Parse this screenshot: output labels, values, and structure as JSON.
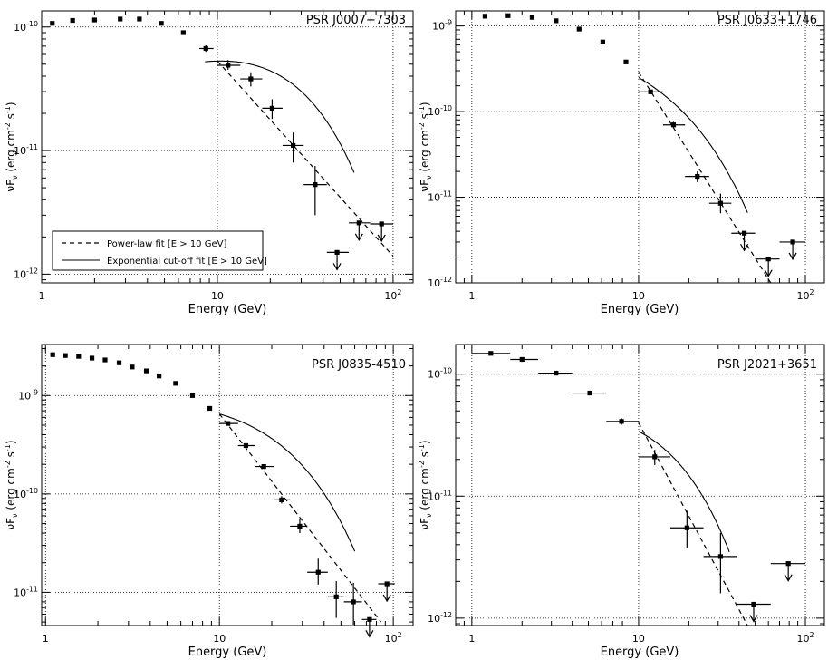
{
  "chart_data": [
    {
      "type": "scatter",
      "title": "PSR J0007+7303",
      "xlabel": "Energy (GeV)",
      "ylabel": "νF_ν (erg cm^-2 s^-1)",
      "x_scale": "log",
      "y_scale": "log",
      "xlim": [
        1,
        130
      ],
      "ylim": [
        8.5e-13,
        1.35e-10
      ],
      "x_tick_labels": [
        "1",
        "10",
        "10^2"
      ],
      "y_tick_labels": [
        "10^-12",
        "10^-11",
        "10^-10"
      ],
      "legend": {
        "placement": "lower-left",
        "entries": [
          {
            "label": "Power-law fit [E > 10 GeV]",
            "style": "dashed"
          },
          {
            "label": "Exponential cut-off fit [E > 10 GeV]",
            "style": "solid"
          }
        ]
      },
      "points": [
        {
          "x": 1.15,
          "y": 1.07e-10
        },
        {
          "x": 1.5,
          "y": 1.13e-10
        },
        {
          "x": 2.0,
          "y": 1.14e-10
        },
        {
          "x": 2.8,
          "y": 1.16e-10
        },
        {
          "x": 3.6,
          "y": 1.16e-10
        },
        {
          "x": 4.8,
          "y": 1.07e-10
        },
        {
          "x": 6.4,
          "y": 9e-11
        },
        {
          "x": 8.6,
          "y": 6.7e-11,
          "xerr": [
            7.9,
            9.5
          ],
          "yerr": [
            6.3e-11,
            7.1e-11
          ]
        },
        {
          "x": 11.5,
          "y": 4.9e-11,
          "xerr": [
            10.0,
            13.5
          ],
          "yerr": [
            4.5e-11,
            5.4e-11
          ]
        },
        {
          "x": 15.5,
          "y": 3.8e-11,
          "xerr": [
            13.5,
            18.0
          ],
          "yerr": [
            3.3e-11,
            4.3e-11
          ]
        },
        {
          "x": 20.5,
          "y": 2.2e-11,
          "xerr": [
            18.0,
            23.5
          ],
          "yerr": [
            1.8e-11,
            2.6e-11
          ]
        },
        {
          "x": 27,
          "y": 1.1e-11,
          "xerr": [
            23.5,
            31
          ],
          "yerr": [
            8e-12,
            1.4e-11
          ]
        },
        {
          "x": 36,
          "y": 5.3e-12,
          "xerr": [
            31,
            42
          ],
          "yerr": [
            3e-12,
            7.5e-12
          ]
        },
        {
          "x": 48,
          "y": 1.5e-12,
          "xerr": [
            42,
            56
          ],
          "upper_limit": true
        },
        {
          "x": 64,
          "y": 2.6e-12,
          "xerr": [
            56,
            74
          ],
          "upper_limit": true
        },
        {
          "x": 86,
          "y": 2.55e-12,
          "xerr": [
            74,
            100
          ],
          "upper_limit": true
        }
      ],
      "fits": {
        "power_law": {
          "from": 10,
          "to": 100,
          "y_from": 5.3e-11,
          "y_to": 1.4e-12
        },
        "exp_cutoff": {
          "y10": 5.3e-11,
          "index": 1.3,
          "ecut": 15,
          "from": 8.5,
          "to": 60
        }
      }
    },
    {
      "type": "scatter",
      "title": "PSR J0633+1746",
      "xlabel": "Energy (GeV)",
      "ylabel": "νF_ν (erg cm^-2 s^-1)",
      "x_scale": "log",
      "y_scale": "log",
      "xlim": [
        0.8,
        130
      ],
      "ylim": [
        1e-12,
        1.5e-09
      ],
      "x_tick_labels": [
        "1",
        "10",
        "10^2"
      ],
      "y_tick_labels": [
        "10^-12",
        "10^-11",
        "10^-10",
        "10^-9"
      ],
      "points": [
        {
          "x": 1.2,
          "y": 1.3e-09
        },
        {
          "x": 1.65,
          "y": 1.32e-09
        },
        {
          "x": 2.3,
          "y": 1.26e-09
        },
        {
          "x": 3.2,
          "y": 1.15e-09
        },
        {
          "x": 4.4,
          "y": 9.2e-10
        },
        {
          "x": 6.1,
          "y": 6.5e-10
        },
        {
          "x": 8.4,
          "y": 3.8e-10
        },
        {
          "x": 11.8,
          "y": 1.7e-10,
          "xerr": [
            10,
            14
          ],
          "yerr": [
            1.6e-10,
            1.8e-10
          ]
        },
        {
          "x": 16.2,
          "y": 7e-11,
          "xerr": [
            14,
            19
          ],
          "yerr": [
            6.4e-11,
            7.6e-11
          ]
        },
        {
          "x": 22.5,
          "y": 1.75e-11,
          "xerr": [
            19,
            26.5
          ],
          "yerr": [
            1.5e-11,
            2e-11
          ]
        },
        {
          "x": 31,
          "y": 8.5e-12,
          "xerr": [
            26.5,
            36
          ],
          "yerr": [
            6.5e-12,
            1.1e-11
          ]
        },
        {
          "x": 43,
          "y": 3.8e-12,
          "xerr": [
            36,
            50
          ],
          "upper_limit": true
        },
        {
          "x": 60,
          "y": 1.9e-12,
          "xerr": [
            50,
            70
          ],
          "upper_limit": true
        },
        {
          "x": 84,
          "y": 3e-12,
          "xerr": [
            70,
            100
          ],
          "upper_limit": true
        }
      ],
      "fits": {
        "power_law": {
          "from": 10,
          "to": 62,
          "y_from": 2.9e-10,
          "y_to": 1e-12
        },
        "exp_cutoff": {
          "y10": 2.5e-10,
          "index": 2.2,
          "ecut": 10.5,
          "from": 10,
          "to": 45
        }
      }
    },
    {
      "type": "scatter",
      "title": "PSR J0835-4510",
      "xlabel": "Energy (GeV)",
      "ylabel": "νF_ν (erg cm^-2 s^-1)",
      "x_scale": "log",
      "y_scale": "log",
      "xlim": [
        0.95,
        130
      ],
      "ylim": [
        4.6e-12,
        3.3e-09
      ],
      "x_tick_labels": [
        "1",
        "10",
        "10^2"
      ],
      "y_tick_labels": [
        "10^-11",
        "10^-10",
        "10^-9"
      ],
      "points": [
        {
          "x": 1.1,
          "y": 2.6e-09
        },
        {
          "x": 1.3,
          "y": 2.55e-09
        },
        {
          "x": 1.55,
          "y": 2.5e-09
        },
        {
          "x": 1.85,
          "y": 2.4e-09
        },
        {
          "x": 2.2,
          "y": 2.3e-09
        },
        {
          "x": 2.65,
          "y": 2.15e-09
        },
        {
          "x": 3.15,
          "y": 1.95e-09
        },
        {
          "x": 3.8,
          "y": 1.78e-09
        },
        {
          "x": 4.5,
          "y": 1.58e-09
        },
        {
          "x": 5.6,
          "y": 1.33e-09
        },
        {
          "x": 7.0,
          "y": 1e-09
        },
        {
          "x": 8.8,
          "y": 7.4e-10
        },
        {
          "x": 11.2,
          "y": 5.2e-10,
          "xerr": [
            10,
            12.8
          ],
          "yerr": [
            5e-10,
            5.4e-10
          ]
        },
        {
          "x": 14.2,
          "y": 3.1e-10,
          "xerr": [
            12.8,
            16
          ],
          "yerr": [
            2.95e-10,
            3.25e-10
          ]
        },
        {
          "x": 18,
          "y": 1.9e-10,
          "xerr": [
            16,
            20.5
          ],
          "yerr": [
            1.8e-10,
            2e-10
          ]
        },
        {
          "x": 22.8,
          "y": 8.7e-11,
          "xerr": [
            20.5,
            25.5
          ],
          "yerr": [
            8e-11,
            9.5e-11
          ]
        },
        {
          "x": 29,
          "y": 4.7e-11,
          "xerr": [
            25.5,
            32
          ],
          "yerr": [
            4e-11,
            5.5e-11
          ]
        },
        {
          "x": 37,
          "y": 1.6e-11,
          "xerr": [
            32,
            42
          ],
          "yerr": [
            1.2e-11,
            2.2e-11
          ]
        },
        {
          "x": 47,
          "y": 9e-12,
          "xerr": [
            42,
            52
          ],
          "yerr": [
            5.5e-12,
            1.3e-11
          ]
        },
        {
          "x": 59,
          "y": 8e-12,
          "xerr": [
            52,
            66
          ],
          "yerr": [
            4.7e-12,
            1.25e-11
          ]
        },
        {
          "x": 73,
          "y": 5.3e-12,
          "xerr": [
            66,
            80
          ],
          "upper_limit": true
        },
        {
          "x": 92,
          "y": 1.22e-11,
          "xerr": [
            82,
            102
          ],
          "upper_limit": true
        }
      ],
      "fits": {
        "power_law": {
          "from": 10,
          "to": 85,
          "y_from": 6.5e-10,
          "y_to": 5e-12
        },
        "exp_cutoff": {
          "y10": 6.5e-10,
          "index": 1.8,
          "ecut": 14,
          "from": 10,
          "to": 60
        }
      }
    },
    {
      "type": "scatter",
      "title": "PSR J2021+3651",
      "xlabel": "Energy (GeV)",
      "ylabel": "νF_ν (erg cm^-2 s^-1)",
      "x_scale": "log",
      "y_scale": "log",
      "xlim": [
        0.8,
        130
      ],
      "ylim": [
        8.7e-13,
        1.75e-10
      ],
      "x_tick_labels": [
        "1",
        "10",
        "10^2"
      ],
      "y_tick_labels": [
        "10^-12",
        "10^-11",
        "10^-10"
      ],
      "points": [
        {
          "x": 1.3,
          "y": 1.48e-10,
          "xerr": [
            1.0,
            1.7
          ]
        },
        {
          "x": 2.0,
          "y": 1.32e-10,
          "xerr": [
            1.7,
            2.5
          ]
        },
        {
          "x": 3.2,
          "y": 1.02e-10,
          "xerr": [
            2.5,
            4.0
          ]
        },
        {
          "x": 5.1,
          "y": 7e-11,
          "xerr": [
            4.0,
            6.4
          ]
        },
        {
          "x": 7.9,
          "y": 4.1e-11,
          "xerr": [
            6.4,
            10
          ],
          "yerr": [
            3.85e-11,
            4.35e-11
          ]
        },
        {
          "x": 12.5,
          "y": 2.1e-11,
          "xerr": [
            10,
            15.5
          ],
          "yerr": [
            1.8e-11,
            2.4e-11
          ]
        },
        {
          "x": 19.5,
          "y": 5.5e-12,
          "xerr": [
            15.5,
            24.5
          ],
          "yerr": [
            3.8e-12,
            7.6e-12
          ]
        },
        {
          "x": 31,
          "y": 3.2e-12,
          "xerr": [
            24.5,
            39
          ],
          "yerr": [
            1.6e-12,
            5e-12
          ]
        },
        {
          "x": 49,
          "y": 1.3e-12,
          "xerr": [
            39,
            62
          ],
          "upper_limit": true
        },
        {
          "x": 79,
          "y": 2.8e-12,
          "xerr": [
            62,
            100
          ],
          "upper_limit": true
        }
      ],
      "fits": {
        "power_law": {
          "from": 10,
          "to": 45,
          "y_from": 4e-11,
          "y_to": 8.7e-13
        },
        "exp_cutoff": {
          "y10": 3.4e-11,
          "index": 1.6,
          "ecut": 9,
          "from": 10,
          "to": 35
        }
      }
    }
  ]
}
